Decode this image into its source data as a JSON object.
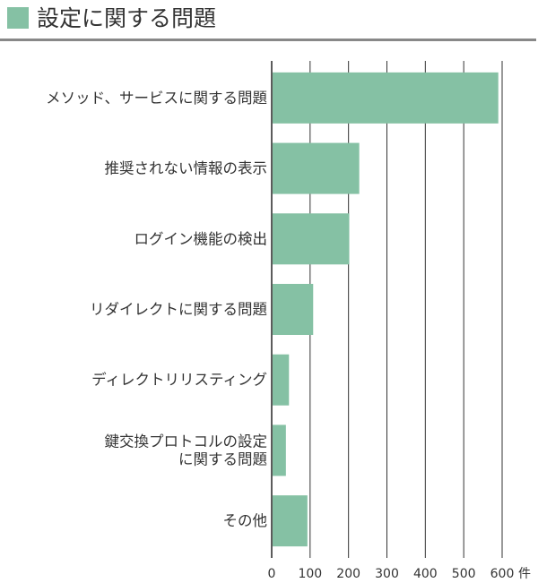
{
  "colors": {
    "bar": "#85c1a4",
    "grid": "#333333",
    "text": "#333333",
    "title_rule": "#888888"
  },
  "chart_data": {
    "type": "bar",
    "orientation": "horizontal",
    "title": "設定に関する問題",
    "categories": [
      [
        "メソッド、サービスに関する問題"
      ],
      [
        "推奨されない情報の表示"
      ],
      [
        "ログイン機能の検出"
      ],
      [
        "リダイレクトに関する問題"
      ],
      [
        "ディレクトリリスティング"
      ],
      [
        "鍵交換プロトコルの設定",
        "に関する問題"
      ],
      [
        "その他"
      ]
    ],
    "values": [
      590,
      228,
      202,
      108,
      45,
      37,
      93
    ],
    "xlim": [
      0,
      600
    ],
    "xticks": [
      0,
      100,
      200,
      300,
      400,
      500,
      600
    ],
    "unit": "件",
    "grid": true,
    "legend": "top-left"
  }
}
